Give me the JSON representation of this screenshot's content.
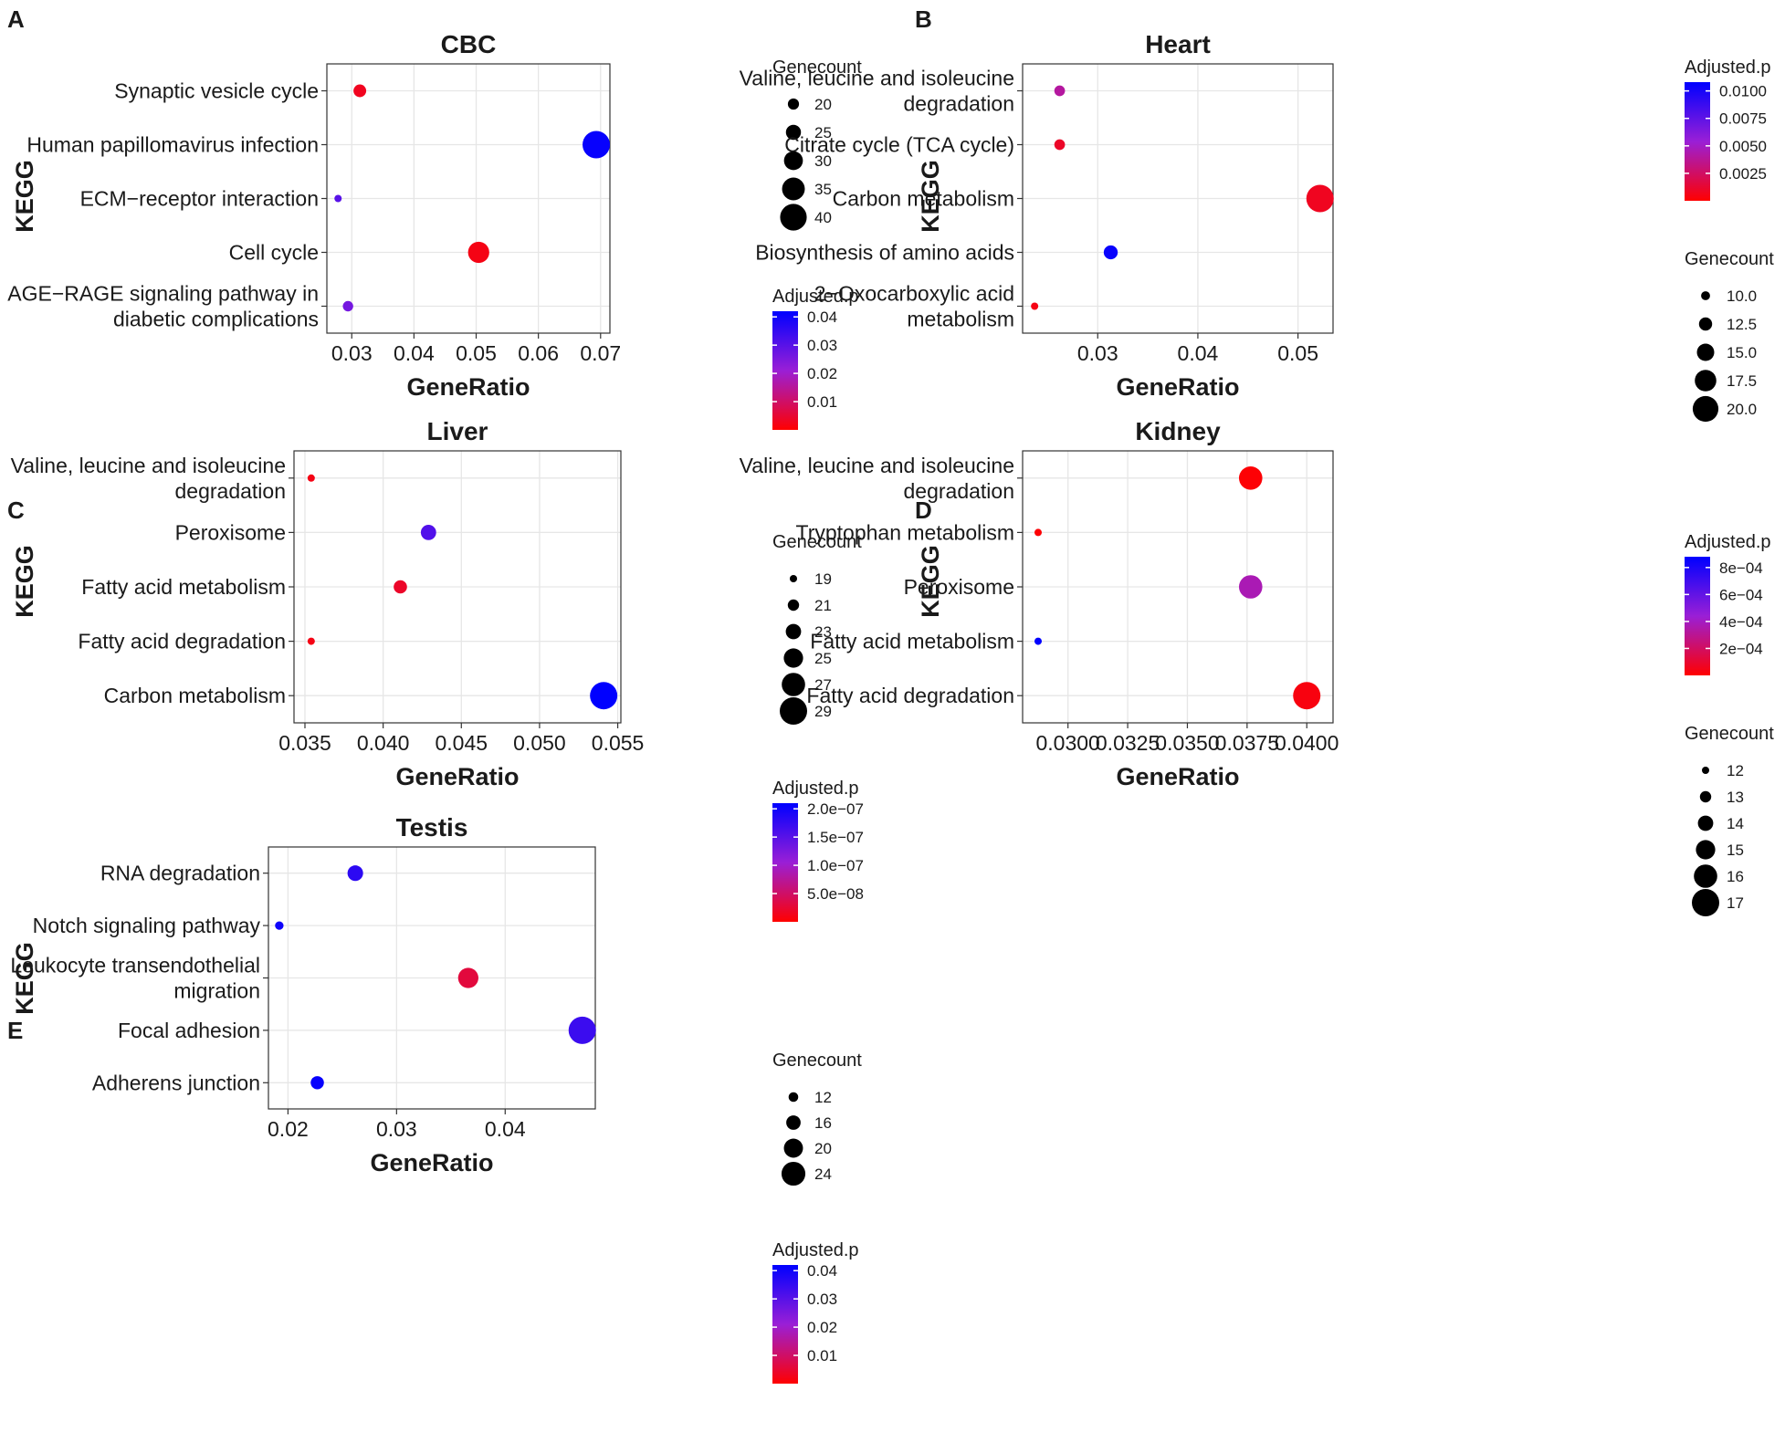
{
  "chart_data": [
    {
      "panel": "A",
      "type": "scatter",
      "title": "CBC",
      "xlabel": "GeneRatio",
      "ylabel": "KEGG",
      "xlim": [
        0.026,
        0.0715
      ],
      "xticks": [
        0.03,
        0.04,
        0.05,
        0.06,
        0.07
      ],
      "xtick_labels": [
        "0.03",
        "0.04",
        "0.05",
        "0.06",
        "0.07"
      ],
      "categories": [
        [
          "Synaptic vesicle cycle"
        ],
        [
          "Human papillomavirus infection"
        ],
        [
          "ECM−receptor interaction"
        ],
        [
          "Cell cycle"
        ],
        [
          "AGE−RAGE signaling pathway in",
          "diabetic complications"
        ]
      ],
      "points": [
        {
          "x": 0.0313,
          "count": 22,
          "padj": 0.003
        },
        {
          "x": 0.0693,
          "count": 41,
          "padj": 0.041
        },
        {
          "x": 0.0278,
          "count": 15,
          "padj": 0.03
        },
        {
          "x": 0.0504,
          "count": 33,
          "padj": 0.002
        },
        {
          "x": 0.0294,
          "count": 19,
          "padj": 0.026
        }
      ],
      "legend_order": [
        "size",
        "color"
      ],
      "size_legend": {
        "title": "Genecount",
        "labels": [
          "20",
          "25",
          "30",
          "35",
          "40"
        ],
        "values": [
          20,
          25,
          30,
          35,
          40
        ],
        "range": [
          15,
          41
        ]
      },
      "color_legend": {
        "title": "Adjusted.p",
        "labels": [
          "0.04",
          "0.03",
          "0.02",
          "0.01"
        ],
        "values": [
          0.04,
          0.03,
          0.02,
          0.01
        ],
        "range": [
          0.0,
          0.042
        ]
      }
    },
    {
      "panel": "B",
      "type": "scatter",
      "title": "Heart",
      "xlabel": "GeneRatio",
      "ylabel": "KEGG",
      "xlim": [
        0.0225,
        0.0535
      ],
      "xticks": [
        0.03,
        0.04,
        0.05
      ],
      "xtick_labels": [
        "0.03",
        "0.04",
        "0.05"
      ],
      "categories": [
        [
          "Valine, leucine and isoleucine",
          "degradation"
        ],
        [
          "Citrate cycle (TCA cycle)"
        ],
        [
          "Carbon metabolism"
        ],
        [
          "Biosynthesis of amino acids"
        ],
        [
          "2−Oxocarboxylic acid",
          "metabolism"
        ]
      ],
      "points": [
        {
          "x": 0.0262,
          "count": 11,
          "padj": 0.004
        },
        {
          "x": 0.0262,
          "count": 11,
          "padj": 0.001
        },
        {
          "x": 0.0522,
          "count": 21,
          "padj": 0.0008
        },
        {
          "x": 0.0313,
          "count": 13,
          "padj": 0.0105
        },
        {
          "x": 0.0237,
          "count": 9,
          "padj": 0.0005
        }
      ],
      "legend_order": [
        "color",
        "size"
      ],
      "size_legend": {
        "title": "Genecount",
        "labels": [
          "10.0",
          "12.5",
          "15.0",
          "17.5",
          "20.0"
        ],
        "values": [
          10,
          12.5,
          15,
          17.5,
          20
        ],
        "range": [
          9,
          21
        ]
      },
      "color_legend": {
        "title": "Adjusted.p",
        "labels": [
          "0.0100",
          "0.0075",
          "0.0050",
          "0.0025"
        ],
        "values": [
          0.01,
          0.0075,
          0.005,
          0.0025
        ],
        "range": [
          0.0,
          0.0108
        ]
      }
    },
    {
      "panel": "C",
      "type": "scatter",
      "title": "Liver",
      "xlabel": "GeneRatio",
      "ylabel": "KEGG",
      "xlim": [
        0.0343,
        0.0552
      ],
      "xticks": [
        0.035,
        0.04,
        0.045,
        0.05,
        0.055
      ],
      "xtick_labels": [
        "0.035",
        "0.040",
        "0.045",
        "0.050",
        "0.055"
      ],
      "categories": [
        [
          "Valine, leucine and isoleucine",
          "degradation"
        ],
        [
          "Peroxisome"
        ],
        [
          "Fatty acid metabolism"
        ],
        [
          "Fatty acid degradation"
        ],
        [
          "Carbon metabolism"
        ]
      ],
      "points": [
        {
          "x": 0.0354,
          "count": 19,
          "padj": 1e-08
        },
        {
          "x": 0.0429,
          "count": 23,
          "padj": 1.55e-07
        },
        {
          "x": 0.0411,
          "count": 22,
          "padj": 2e-08
        },
        {
          "x": 0.0354,
          "count": 19,
          "padj": 1e-08
        },
        {
          "x": 0.0541,
          "count": 29,
          "padj": 2.1e-07
        }
      ],
      "legend_order": [
        "size",
        "color"
      ],
      "size_legend": {
        "title": "Genecount",
        "labels": [
          "19",
          "21",
          "23",
          "25",
          "27",
          "29"
        ],
        "values": [
          19,
          21,
          23,
          25,
          27,
          29
        ],
        "range": [
          19,
          29
        ]
      },
      "color_legend": {
        "title": "Adjusted.p",
        "labels": [
          "2.0e−07",
          "1.5e−07",
          "1.0e−07",
          "5.0e−08"
        ],
        "values": [
          2e-07,
          1.5e-07,
          1e-07,
          5e-08
        ],
        "range": [
          0.0,
          2.1e-07
        ]
      }
    },
    {
      "panel": "D",
      "type": "scatter",
      "title": "Kidney",
      "xlabel": "GeneRatio",
      "ylabel": "KEGG",
      "xlim": [
        0.0281,
        0.0411
      ],
      "xticks": [
        0.03,
        0.0325,
        0.035,
        0.0375,
        0.04
      ],
      "xtick_labels": [
        "0.0300",
        "0.0325",
        "0.0350",
        "0.0375",
        "0.0400"
      ],
      "categories": [
        [
          "Valine, leucine and isoleucine",
          "degradation"
        ],
        [
          "Tryptophan metabolism"
        ],
        [
          "Peroxisome"
        ],
        [
          "Fatty acid metabolism"
        ],
        [
          "Fatty acid degradation"
        ]
      ],
      "points": [
        {
          "x": 0.03765,
          "count": 16,
          "padj": 1e-05
        },
        {
          "x": 0.02875,
          "count": 12,
          "padj": 1e-05
        },
        {
          "x": 0.03765,
          "count": 16,
          "padj": 0.00037
        },
        {
          "x": 0.02875,
          "count": 12,
          "padj": 0.00088
        },
        {
          "x": 0.04,
          "count": 17,
          "padj": 3e-05
        }
      ],
      "legend_order": [
        "color",
        "size"
      ],
      "size_legend": {
        "title": "Genecount",
        "labels": [
          "12",
          "13",
          "14",
          "15",
          "16",
          "17"
        ],
        "values": [
          12,
          13,
          14,
          15,
          16,
          17
        ],
        "range": [
          12,
          17
        ]
      },
      "color_legend": {
        "title": "Adjusted.p",
        "labels": [
          "8e−04",
          "6e−04",
          "4e−04",
          "2e−04"
        ],
        "values": [
          0.0008,
          0.0006,
          0.0004,
          0.0002
        ],
        "range": [
          0.0,
          0.00088
        ]
      }
    },
    {
      "panel": "E",
      "type": "scatter",
      "title": "Testis",
      "xlabel": "GeneRatio",
      "ylabel": "KEGG",
      "xlim": [
        0.0182,
        0.0483
      ],
      "xticks": [
        0.02,
        0.03,
        0.04
      ],
      "xtick_labels": [
        "0.02",
        "0.03",
        "0.04"
      ],
      "categories": [
        [
          "RNA degradation"
        ],
        [
          "Notch signaling pathway"
        ],
        [
          "Leukocyte transendothelial",
          "migration"
        ],
        [
          "Focal adhesion"
        ],
        [
          "Adherens junction"
        ]
      ],
      "points": [
        {
          "x": 0.0262,
          "count": 17,
          "padj": 0.036
        },
        {
          "x": 0.0192,
          "count": 11,
          "padj": 0.04
        },
        {
          "x": 0.0366,
          "count": 21,
          "padj": 0.006
        },
        {
          "x": 0.0471,
          "count": 27,
          "padj": 0.034
        },
        {
          "x": 0.0227,
          "count": 15,
          "padj": 0.041
        }
      ],
      "legend_order": [
        "size",
        "color"
      ],
      "size_legend": {
        "title": "Genecount",
        "labels": [
          "12",
          "16",
          "20",
          "24"
        ],
        "values": [
          12,
          16,
          20,
          24
        ],
        "range": [
          10,
          27
        ]
      },
      "color_legend": {
        "title": "Adjusted.p",
        "labels": [
          "0.04",
          "0.03",
          "0.02",
          "0.01"
        ],
        "values": [
          0.04,
          0.03,
          0.02,
          0.01
        ],
        "range": [
          0.0,
          0.042
        ]
      }
    }
  ],
  "colors": {
    "low": "#ff0000",
    "mid": "#9a1fd6",
    "high": "#0000ff",
    "grid": "#e6e6e6",
    "axis": "#333333",
    "text": "#1a1a1a"
  }
}
